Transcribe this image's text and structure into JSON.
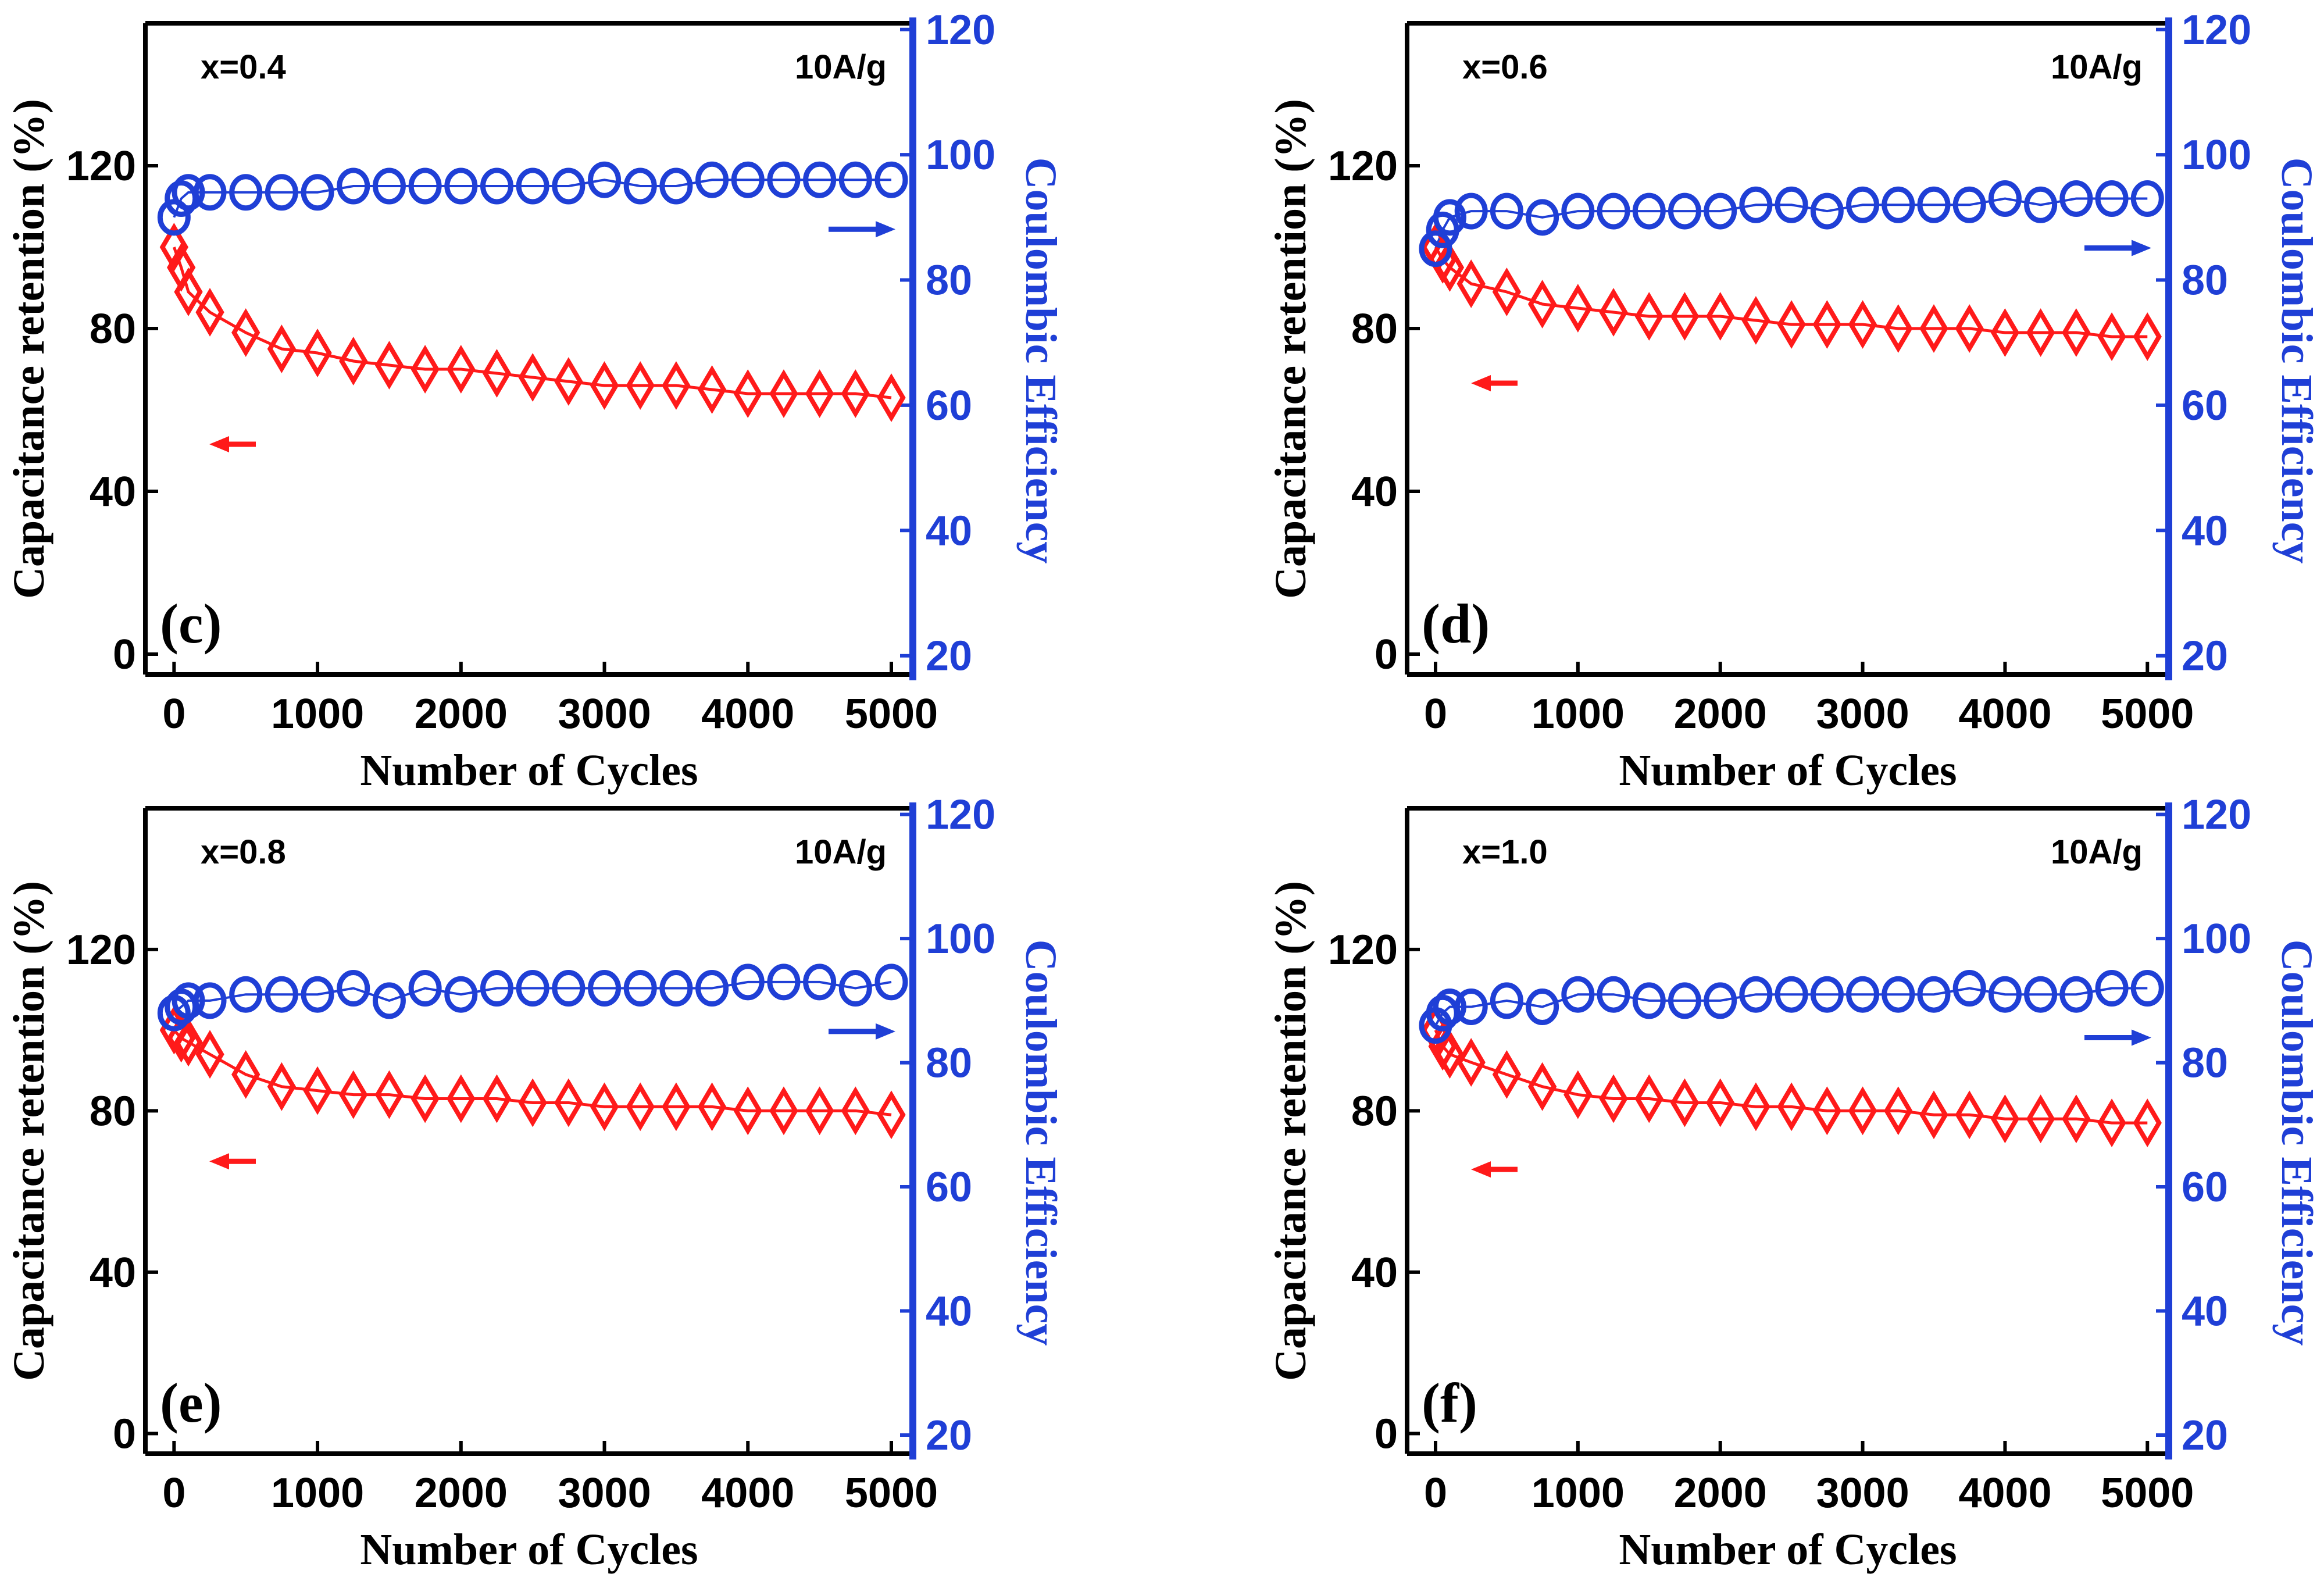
{
  "figure": {
    "x_axis_label": "Number of Cycles",
    "left_axis_label": "Capacitance retention (%)",
    "right_axis_label": "Coulombic Efficiency",
    "colors": {
      "retention": "#ff1a1a",
      "efficiency": "#1f3fd6",
      "axis_left": "#000000",
      "axis_right": "#1f3fd6"
    }
  },
  "chart_data": [
    {
      "type": "scatter",
      "panel_label": "(c)",
      "composition_label": "x=0.4",
      "current_density_label": "10A/g",
      "xlabel": "Number of Cycles",
      "ylabel_left": "Capacitance retention (%)",
      "ylabel_right": "Coulombic Efficiency",
      "xlim": [
        -200,
        5150
      ],
      "xticks": [
        0,
        1000,
        2000,
        3000,
        4000,
        5000
      ],
      "ylim_left": [
        -5,
        155
      ],
      "yticks_left": [
        0,
        40,
        80,
        120
      ],
      "ylim_right": [
        17,
        121
      ],
      "yticks_right": [
        20,
        40,
        60,
        80,
        100,
        120
      ],
      "x": [
        0,
        50,
        100,
        250,
        500,
        750,
        1000,
        1250,
        1500,
        1750,
        2000,
        2250,
        2500,
        2750,
        3000,
        3250,
        3500,
        3750,
        4000,
        4250,
        4500,
        4750,
        5000
      ],
      "series": [
        {
          "name": "Capacitance retention",
          "axis": "left",
          "marker": "diamond",
          "values": [
            100,
            95,
            89,
            84,
            79,
            75,
            74,
            72,
            71,
            70,
            70,
            69,
            68,
            67,
            66,
            66,
            66,
            65,
            64,
            64,
            64,
            64,
            63
          ]
        },
        {
          "name": "Coulombic Efficiency",
          "axis": "right",
          "marker": "circle",
          "values": [
            90,
            93,
            94,
            94,
            94,
            94,
            94,
            95,
            95,
            95,
            95,
            95,
            95,
            95,
            96,
            95,
            95,
            96,
            96,
            96,
            96,
            96,
            96
          ]
        }
      ]
    },
    {
      "type": "scatter",
      "panel_label": "(d)",
      "composition_label": "x=0.6",
      "current_density_label": "10A/g",
      "xlabel": "Number of Cycles",
      "ylabel_left": "Capacitance retention (%)",
      "ylabel_right": "Coulombic Efficiency",
      "xlim": [
        -200,
        5150
      ],
      "xticks": [
        0,
        1000,
        2000,
        3000,
        4000,
        5000
      ],
      "ylim_left": [
        -5,
        155
      ],
      "yticks_left": [
        0,
        40,
        80,
        120
      ],
      "ylim_right": [
        17,
        121
      ],
      "yticks_right": [
        20,
        40,
        60,
        80,
        100,
        120
      ],
      "x": [
        0,
        50,
        100,
        250,
        500,
        750,
        1000,
        1250,
        1500,
        1750,
        2000,
        2250,
        2500,
        2750,
        3000,
        3250,
        3500,
        3750,
        4000,
        4250,
        4500,
        4750,
        5000
      ],
      "series": [
        {
          "name": "Capacitance retention",
          "axis": "left",
          "marker": "diamond",
          "values": [
            100,
            97,
            95,
            91,
            89,
            86,
            85,
            84,
            83,
            83,
            83,
            82,
            81,
            81,
            81,
            80,
            80,
            80,
            79,
            79,
            79,
            78,
            78
          ]
        },
        {
          "name": "Coulombic Efficiency",
          "axis": "right",
          "marker": "circle",
          "values": [
            85,
            88,
            90,
            91,
            91,
            90,
            91,
            91,
            91,
            91,
            91,
            92,
            92,
            91,
            92,
            92,
            92,
            92,
            93,
            92,
            93,
            93,
            93
          ]
        }
      ]
    },
    {
      "type": "scatter",
      "panel_label": "(e)",
      "composition_label": "x=0.8",
      "current_density_label": "10A/g",
      "xlabel": "Number of Cycles",
      "ylabel_left": "Capacitance retention (%)",
      "ylabel_right": "Coulombic Efficiency",
      "xlim": [
        -200,
        5150
      ],
      "xticks": [
        0,
        1000,
        2000,
        3000,
        4000,
        5000
      ],
      "ylim_left": [
        -5,
        155
      ],
      "yticks_left": [
        0,
        40,
        80,
        120
      ],
      "ylim_right": [
        17,
        121
      ],
      "yticks_right": [
        20,
        40,
        60,
        80,
        100,
        120
      ],
      "x": [
        0,
        50,
        100,
        250,
        500,
        750,
        1000,
        1250,
        1500,
        1750,
        2000,
        2250,
        2500,
        2750,
        3000,
        3250,
        3500,
        3750,
        4000,
        4250,
        4500,
        4750,
        5000
      ],
      "series": [
        {
          "name": "Capacitance retention",
          "axis": "left",
          "marker": "diamond",
          "values": [
            100,
            98,
            97,
            94,
            89,
            86,
            85,
            84,
            84,
            83,
            83,
            83,
            82,
            82,
            81,
            81,
            81,
            81,
            80,
            80,
            80,
            80,
            79
          ]
        },
        {
          "name": "Coulombic Efficiency",
          "axis": "right",
          "marker": "circle",
          "values": [
            88,
            89,
            90,
            90,
            91,
            91,
            91,
            92,
            90,
            92,
            91,
            92,
            92,
            92,
            92,
            92,
            92,
            92,
            93,
            93,
            93,
            92,
            93
          ]
        }
      ]
    },
    {
      "type": "scatter",
      "panel_label": "(f)",
      "composition_label": "x=1.0",
      "current_density_label": "10A/g",
      "xlabel": "Number of Cycles",
      "ylabel_left": "Capacitance retention (%)",
      "ylabel_right": "Coulombic Efficiency",
      "xlim": [
        -200,
        5150
      ],
      "xticks": [
        0,
        1000,
        2000,
        3000,
        4000,
        5000
      ],
      "ylim_left": [
        -5,
        155
      ],
      "yticks_left": [
        0,
        40,
        80,
        120
      ],
      "ylim_right": [
        17,
        121
      ],
      "yticks_right": [
        20,
        40,
        60,
        80,
        100,
        120
      ],
      "x": [
        0,
        50,
        100,
        250,
        500,
        750,
        1000,
        1250,
        1500,
        1750,
        2000,
        2250,
        2500,
        2750,
        3000,
        3250,
        3500,
        3750,
        4000,
        4250,
        4500,
        4750,
        5000
      ],
      "series": [
        {
          "name": "Capacitance retention",
          "axis": "left",
          "marker": "diamond",
          "values": [
            100,
            96,
            94,
            92,
            89,
            86,
            84,
            83,
            83,
            82,
            82,
            81,
            81,
            80,
            80,
            80,
            79,
            79,
            78,
            78,
            78,
            77,
            77
          ]
        },
        {
          "name": "Coulombic Efficiency",
          "axis": "right",
          "marker": "circle",
          "values": [
            86,
            88,
            89,
            89,
            90,
            89,
            91,
            91,
            90,
            90,
            90,
            91,
            91,
            91,
            91,
            91,
            91,
            92,
            91,
            91,
            91,
            92,
            92
          ]
        }
      ]
    }
  ]
}
